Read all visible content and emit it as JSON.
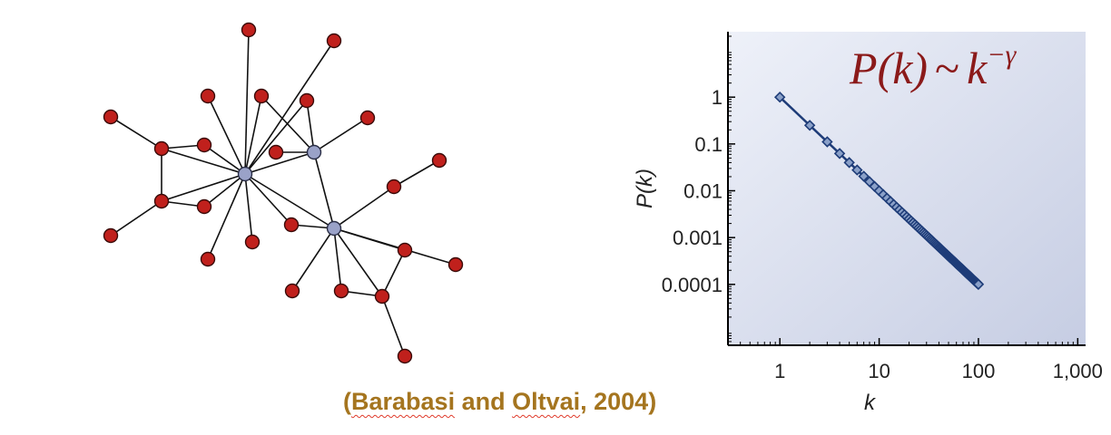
{
  "network": {
    "colors": {
      "peripheral": "#c0201c",
      "hub": "#9aa2c8",
      "edge": "#111111"
    }
  },
  "chart_data": {
    "type": "line",
    "title": "P(k) ~ k^-γ",
    "formula": {
      "lhs": "P(k)",
      "tilde": "~",
      "base": "k",
      "exponent": "−γ"
    },
    "xlabel": "k",
    "ylabel": "P(k)",
    "x_scale": "log",
    "y_scale": "log",
    "xlim": [
      0.3,
      1200
    ],
    "ylim": [
      5e-06,
      25
    ],
    "xticks": [
      {
        "value": 1,
        "label": "1"
      },
      {
        "value": 10,
        "label": "10"
      },
      {
        "value": 100,
        "label": "100"
      },
      {
        "value": 1000,
        "label": "1,000"
      }
    ],
    "yticks": [
      {
        "value": 1,
        "label": "1"
      },
      {
        "value": 0.1,
        "label": "0.1"
      },
      {
        "value": 0.01,
        "label": "0.01"
      },
      {
        "value": 0.001,
        "label": "0.001"
      },
      {
        "value": 0.0001,
        "label": "0.0001"
      }
    ],
    "series": [
      {
        "color": "#1e3c78",
        "x_range": [
          1,
          100
        ],
        "y_at_x_min": 1,
        "y_at_x_max": 0.0001
      }
    ],
    "grid": false
  },
  "citation": {
    "open": "(",
    "author1": "Barabasi",
    "and": " and ",
    "author2": "Oltvai",
    "year": ", 2004)"
  }
}
